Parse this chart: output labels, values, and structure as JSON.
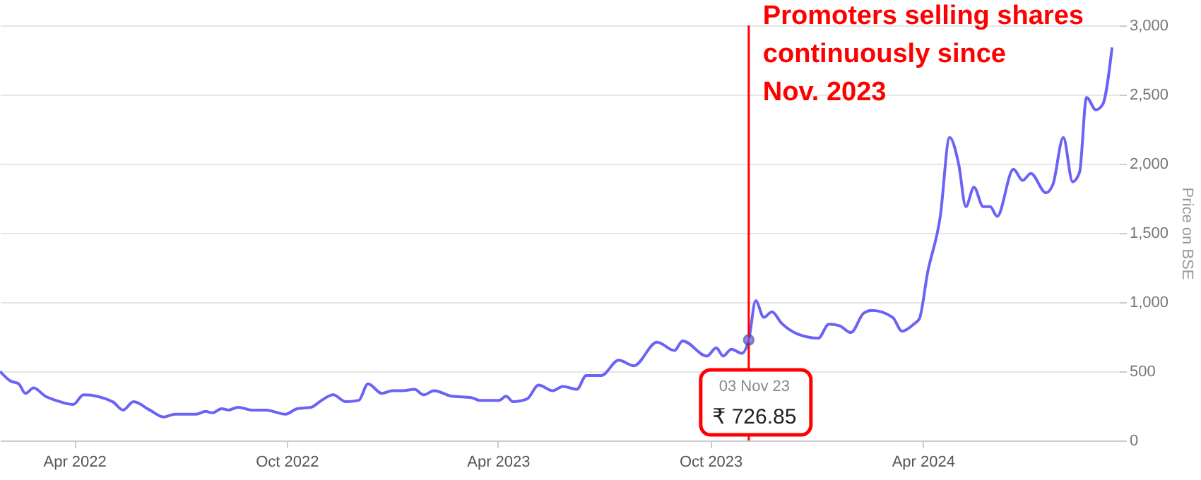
{
  "chart_data": {
    "type": "line",
    "ylabel": "Price on BSE",
    "x": [
      "2022-01-27",
      "2022-02-05",
      "2022-02-12",
      "2022-02-18",
      "2022-02-25",
      "2022-03-07",
      "2022-03-16",
      "2022-03-31",
      "2022-04-09",
      "2022-05-04",
      "2022-05-13",
      "2022-05-22",
      "2022-06-05",
      "2022-06-17",
      "2022-06-27",
      "2022-07-15",
      "2022-07-23",
      "2022-07-29",
      "2022-08-06",
      "2022-08-12",
      "2022-08-20",
      "2022-09-01",
      "2022-09-13",
      "2022-09-30",
      "2022-10-10",
      "2022-10-22",
      "2022-10-31",
      "2022-11-10",
      "2022-11-21",
      "2022-12-02",
      "2022-12-10",
      "2022-12-22",
      "2022-12-31",
      "2023-01-09",
      "2023-01-19",
      "2023-01-27",
      "2023-02-05",
      "2023-02-20",
      "2023-03-09",
      "2023-03-16",
      "2023-04-02",
      "2023-04-08",
      "2023-04-14",
      "2023-04-26",
      "2023-05-06",
      "2023-05-18",
      "2023-05-27",
      "2023-06-08",
      "2023-06-16",
      "2023-06-29",
      "2023-07-14",
      "2023-07-27",
      "2023-08-16",
      "2023-08-31",
      "2023-09-07",
      "2023-09-28",
      "2023-10-06",
      "2023-10-12",
      "2023-10-19",
      "2023-10-28",
      "2023-11-03",
      "2023-11-09",
      "2023-11-16",
      "2023-11-23",
      "2023-12-01",
      "2023-12-15",
      "2024-01-02",
      "2024-01-11",
      "2024-01-20",
      "2024-01-30",
      "2024-02-10",
      "2024-02-17",
      "2024-03-06",
      "2024-03-14",
      "2024-03-24",
      "2024-03-29",
      "2024-04-05",
      "2024-04-16",
      "2024-04-24",
      "2024-05-02",
      "2024-05-08",
      "2024-05-15",
      "2024-05-23",
      "2024-05-29",
      "2024-06-04",
      "2024-06-18",
      "2024-06-26",
      "2024-07-03",
      "2024-07-16",
      "2024-07-22",
      "2024-07-31",
      "2024-08-08",
      "2024-08-14",
      "2024-08-20",
      "2024-08-28",
      "2024-09-03",
      "2024-09-11"
    ],
    "series": [
      {
        "color": "#6b63f6",
        "values": [
          500,
          430,
          410,
          340,
          380,
          320,
          290,
          260,
          330,
          280,
          220,
          280,
          220,
          170,
          190,
          190,
          210,
          200,
          230,
          220,
          240,
          220,
          220,
          190,
          230,
          240,
          290,
          330,
          280,
          290,
          410,
          340,
          360,
          360,
          370,
          330,
          360,
          320,
          310,
          290,
          290,
          320,
          280,
          300,
          400,
          360,
          390,
          370,
          470,
          470,
          580,
          540,
          710,
          650,
          720,
          610,
          670,
          610,
          660,
          630,
          726.85,
          1010,
          890,
          930,
          850,
          770,
          740,
          840,
          830,
          780,
          920,
          940,
          890,
          790,
          840,
          880,
          1210,
          1620,
          2190,
          1990,
          1690,
          1830,
          1690,
          1690,
          1620,
          1960,
          1880,
          1930,
          1790,
          1850,
          2190,
          1870,
          1940,
          2480,
          2390,
          2430,
          2840
        ]
      }
    ],
    "xlim": [
      "2022-01-27",
      "2024-09-17"
    ],
    "xticks": [
      {
        "value": "2022-04-01",
        "label": "Apr 2022"
      },
      {
        "value": "2022-10-01",
        "label": "Oct 2022"
      },
      {
        "value": "2023-04-01",
        "label": "Apr 2023"
      },
      {
        "value": "2023-10-01",
        "label": "Oct 2023"
      },
      {
        "value": "2024-04-01",
        "label": "Apr 2024"
      }
    ],
    "ylim": [
      0,
      3000
    ],
    "yticks": [
      0,
      500,
      {
        "value": 1000,
        "label": "1,000"
      },
      {
        "value": 1500,
        "label": "1,500"
      },
      {
        "value": 2000,
        "label": "2,000"
      },
      {
        "value": 2500,
        "label": "2,500"
      },
      {
        "value": 3000,
        "label": "3,000"
      }
    ],
    "grid": "y",
    "ref_lines": [
      {
        "axis": "x",
        "value": "2023-11-03",
        "label": "Promoters selling shares\ncontinuously since\nNov. 2023",
        "color": "#ff0000"
      }
    ],
    "annotations": [
      "03 Nov 23",
      "₹ 726.85"
    ]
  }
}
